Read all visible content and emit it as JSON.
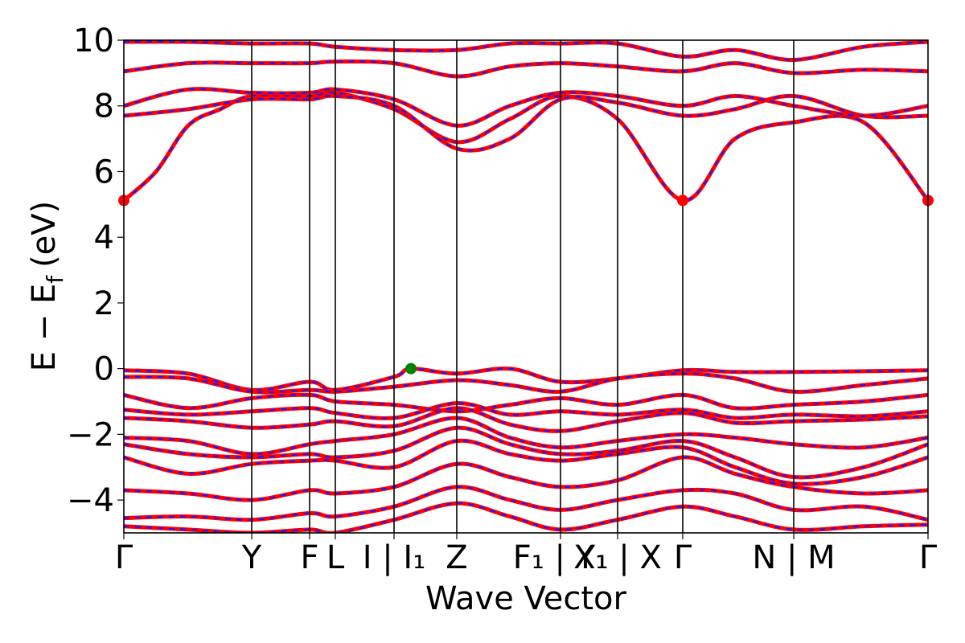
{
  "chart_data": {
    "type": "line",
    "xlabel": "Wave Vector",
    "ylabel": "E − E_f (eV)",
    "ylabel_main": "E − E",
    "ylabel_sub": "f",
    "ylabel_unit": "(eV)",
    "ylim": [
      -5,
      10
    ],
    "xlim": [
      0,
      1
    ],
    "yticks": [
      "−4",
      "−2",
      "0",
      "2",
      "4",
      "6",
      "8",
      "10"
    ],
    "ytick_values": [
      -4,
      -2,
      0,
      2,
      4,
      6,
      8,
      10
    ],
    "grid": false,
    "series_colors": {
      "red": "#ff0000",
      "blue": "#1a1aff"
    },
    "kpoints": [
      {
        "label": "Γ",
        "x": 0.0
      },
      {
        "label": "Y",
        "x": 0.159
      },
      {
        "label": "F",
        "x": 0.231
      },
      {
        "label": "L",
        "x": 0.263
      },
      {
        "label": "I | I₁",
        "x": 0.336
      },
      {
        "label": "Z",
        "x": 0.414
      },
      {
        "label": "F₁ | Y₁",
        "x": 0.543
      },
      {
        "label": "X₁ | X",
        "x": 0.614
      },
      {
        "label": "Γ",
        "x": 0.695
      },
      {
        "label": "N | M",
        "x": 0.833
      },
      {
        "label": "Γ",
        "x": 1.0
      }
    ],
    "markers": [
      {
        "label": "VBM",
        "x": 0.357,
        "y": 0.0,
        "color": "#008000"
      },
      {
        "label": "CBM",
        "x": 0.0,
        "y": 5.12,
        "color": "#ff0000"
      },
      {
        "label": "CBM",
        "x": 0.695,
        "y": 5.12,
        "color": "#ff0000"
      },
      {
        "label": "CBM",
        "x": 1.0,
        "y": 5.12,
        "color": "#ff0000"
      }
    ],
    "series": [
      {
        "values": [
          [
            0,
            -0.05
          ],
          [
            0.08,
            -0.15
          ],
          [
            0.159,
            -0.65
          ],
          [
            0.231,
            -0.4
          ],
          [
            0.263,
            -0.65
          ],
          [
            0.336,
            -0.25
          ],
          [
            0.357,
            0.0
          ],
          [
            0.414,
            -0.15
          ],
          [
            0.48,
            0.0
          ],
          [
            0.543,
            -0.4
          ],
          [
            0.614,
            -0.3
          ],
          [
            0.695,
            -0.05
          ],
          [
            0.76,
            -0.1
          ],
          [
            0.833,
            -0.1
          ],
          [
            0.92,
            -0.08
          ],
          [
            1.0,
            -0.05
          ]
        ]
      },
      {
        "values": [
          [
            0,
            -0.25
          ],
          [
            0.08,
            -0.3
          ],
          [
            0.159,
            -0.7
          ],
          [
            0.231,
            -0.65
          ],
          [
            0.263,
            -0.7
          ],
          [
            0.336,
            -0.55
          ],
          [
            0.414,
            -0.35
          ],
          [
            0.48,
            -0.5
          ],
          [
            0.543,
            -0.7
          ],
          [
            0.614,
            -0.3
          ],
          [
            0.695,
            -0.15
          ],
          [
            0.76,
            -0.3
          ],
          [
            0.833,
            -0.7
          ],
          [
            0.92,
            -0.5
          ],
          [
            1.0,
            -0.3
          ]
        ]
      },
      {
        "values": [
          [
            0,
            -0.8
          ],
          [
            0.08,
            -1.2
          ],
          [
            0.159,
            -0.9
          ],
          [
            0.231,
            -0.8
          ],
          [
            0.263,
            -1.0
          ],
          [
            0.336,
            -1.1
          ],
          [
            0.414,
            -1.3
          ],
          [
            0.48,
            -1.1
          ],
          [
            0.543,
            -0.9
          ],
          [
            0.614,
            -1.1
          ],
          [
            0.695,
            -0.8
          ],
          [
            0.76,
            -1.2
          ],
          [
            0.833,
            -1.1
          ],
          [
            0.92,
            -1.0
          ],
          [
            1.0,
            -0.8
          ]
        ]
      },
      {
        "values": [
          [
            0,
            -1.25
          ],
          [
            0.08,
            -1.4
          ],
          [
            0.159,
            -1.3
          ],
          [
            0.231,
            -1.2
          ],
          [
            0.263,
            -1.35
          ],
          [
            0.336,
            -1.5
          ],
          [
            0.414,
            -1.05
          ],
          [
            0.48,
            -1.4
          ],
          [
            0.543,
            -1.3
          ],
          [
            0.614,
            -1.4
          ],
          [
            0.695,
            -1.25
          ],
          [
            0.76,
            -1.5
          ],
          [
            0.833,
            -1.4
          ],
          [
            0.92,
            -1.45
          ],
          [
            1.0,
            -1.3
          ]
        ]
      },
      {
        "values": [
          [
            0,
            -1.5
          ],
          [
            0.08,
            -1.6
          ],
          [
            0.159,
            -1.8
          ],
          [
            0.231,
            -1.7
          ],
          [
            0.263,
            -1.6
          ],
          [
            0.336,
            -1.75
          ],
          [
            0.414,
            -1.2
          ],
          [
            0.48,
            -1.7
          ],
          [
            0.543,
            -1.9
          ],
          [
            0.614,
            -1.6
          ],
          [
            0.695,
            -1.35
          ],
          [
            0.76,
            -1.65
          ],
          [
            0.833,
            -1.6
          ],
          [
            0.92,
            -1.55
          ],
          [
            1.0,
            -1.45
          ]
        ]
      },
      {
        "values": [
          [
            0,
            -2.1
          ],
          [
            0.08,
            -2.2
          ],
          [
            0.159,
            -2.6
          ],
          [
            0.231,
            -2.3
          ],
          [
            0.263,
            -2.2
          ],
          [
            0.336,
            -2.0
          ],
          [
            0.414,
            -1.5
          ],
          [
            0.48,
            -2.1
          ],
          [
            0.543,
            -2.4
          ],
          [
            0.614,
            -2.2
          ],
          [
            0.695,
            -2.0
          ],
          [
            0.76,
            -2.1
          ],
          [
            0.833,
            -2.3
          ],
          [
            0.92,
            -2.4
          ],
          [
            1.0,
            -2.1
          ]
        ]
      },
      {
        "values": [
          [
            0,
            -2.3
          ],
          [
            0.08,
            -2.6
          ],
          [
            0.159,
            -2.7
          ],
          [
            0.231,
            -2.6
          ],
          [
            0.263,
            -2.7
          ],
          [
            0.336,
            -2.5
          ],
          [
            0.414,
            -1.8
          ],
          [
            0.48,
            -2.3
          ],
          [
            0.543,
            -2.6
          ],
          [
            0.614,
            -2.5
          ],
          [
            0.695,
            -2.2
          ],
          [
            0.76,
            -2.7
          ],
          [
            0.833,
            -3.3
          ],
          [
            0.92,
            -3.0
          ],
          [
            1.0,
            -2.3
          ]
        ]
      },
      {
        "values": [
          [
            0,
            -2.7
          ],
          [
            0.08,
            -3.2
          ],
          [
            0.159,
            -2.9
          ],
          [
            0.231,
            -2.8
          ],
          [
            0.263,
            -2.8
          ],
          [
            0.336,
            -3.0
          ],
          [
            0.414,
            -2.2
          ],
          [
            0.48,
            -2.6
          ],
          [
            0.543,
            -2.8
          ],
          [
            0.614,
            -2.6
          ],
          [
            0.695,
            -2.4
          ],
          [
            0.76,
            -3.0
          ],
          [
            0.833,
            -3.5
          ],
          [
            0.92,
            -3.3
          ],
          [
            1.0,
            -2.7
          ]
        ]
      },
      {
        "values": [
          [
            0,
            -3.7
          ],
          [
            0.08,
            -3.8
          ],
          [
            0.159,
            -4.0
          ],
          [
            0.231,
            -3.7
          ],
          [
            0.263,
            -3.8
          ],
          [
            0.336,
            -3.6
          ],
          [
            0.414,
            -2.9
          ],
          [
            0.48,
            -3.3
          ],
          [
            0.543,
            -3.6
          ],
          [
            0.614,
            -3.4
          ],
          [
            0.695,
            -2.7
          ],
          [
            0.76,
            -3.2
          ],
          [
            0.833,
            -3.6
          ],
          [
            0.92,
            -3.8
          ],
          [
            1.0,
            -3.7
          ]
        ]
      },
      {
        "values": [
          [
            0,
            -4.55
          ],
          [
            0.08,
            -4.5
          ],
          [
            0.159,
            -4.6
          ],
          [
            0.231,
            -4.4
          ],
          [
            0.263,
            -4.5
          ],
          [
            0.336,
            -4.2
          ],
          [
            0.414,
            -3.6
          ],
          [
            0.48,
            -4.0
          ],
          [
            0.543,
            -4.3
          ],
          [
            0.614,
            -4.0
          ],
          [
            0.695,
            -3.7
          ],
          [
            0.76,
            -3.8
          ],
          [
            0.833,
            -4.3
          ],
          [
            0.92,
            -4.2
          ],
          [
            1.0,
            -4.6
          ]
        ]
      },
      {
        "values": [
          [
            0,
            -4.8
          ],
          [
            0.08,
            -4.9
          ],
          [
            0.159,
            -5.0
          ],
          [
            0.231,
            -4.9
          ],
          [
            0.263,
            -5.0
          ],
          [
            0.336,
            -4.6
          ],
          [
            0.414,
            -4.1
          ],
          [
            0.48,
            -4.5
          ],
          [
            0.543,
            -4.9
          ],
          [
            0.614,
            -4.6
          ],
          [
            0.695,
            -4.2
          ],
          [
            0.76,
            -4.5
          ],
          [
            0.833,
            -4.9
          ],
          [
            0.92,
            -4.8
          ],
          [
            1.0,
            -4.75
          ]
        ]
      },
      {
        "values": [
          [
            0,
            5.12
          ],
          [
            0.04,
            6.0
          ],
          [
            0.08,
            7.4
          ],
          [
            0.12,
            7.9
          ],
          [
            0.159,
            8.3
          ],
          [
            0.231,
            8.3
          ],
          [
            0.263,
            8.4
          ],
          [
            0.336,
            7.9
          ],
          [
            0.414,
            6.9
          ],
          [
            0.48,
            7.6
          ],
          [
            0.543,
            8.3
          ],
          [
            0.614,
            7.6
          ],
          [
            0.695,
            5.12
          ],
          [
            0.76,
            7.0
          ],
          [
            0.833,
            7.5
          ],
          [
            0.92,
            7.5
          ],
          [
            1.0,
            5.12
          ]
        ]
      },
      {
        "values": [
          [
            0,
            7.7
          ],
          [
            0.08,
            7.9
          ],
          [
            0.159,
            8.2
          ],
          [
            0.231,
            8.2
          ],
          [
            0.263,
            8.3
          ],
          [
            0.336,
            8.0
          ],
          [
            0.414,
            6.7
          ],
          [
            0.48,
            7.0
          ],
          [
            0.543,
            8.2
          ],
          [
            0.614,
            8.1
          ],
          [
            0.695,
            7.7
          ],
          [
            0.76,
            7.9
          ],
          [
            0.833,
            8.3
          ],
          [
            0.92,
            7.7
          ],
          [
            1.0,
            7.7
          ]
        ]
      },
      {
        "values": [
          [
            0,
            8.0
          ],
          [
            0.08,
            8.5
          ],
          [
            0.159,
            8.4
          ],
          [
            0.231,
            8.4
          ],
          [
            0.263,
            8.5
          ],
          [
            0.336,
            8.2
          ],
          [
            0.414,
            7.4
          ],
          [
            0.48,
            8.0
          ],
          [
            0.543,
            8.4
          ],
          [
            0.614,
            8.3
          ],
          [
            0.695,
            8.0
          ],
          [
            0.76,
            8.3
          ],
          [
            0.833,
            8.0
          ],
          [
            0.92,
            7.7
          ],
          [
            1.0,
            8.0
          ]
        ]
      },
      {
        "values": [
          [
            0,
            9.05
          ],
          [
            0.08,
            9.3
          ],
          [
            0.159,
            9.3
          ],
          [
            0.231,
            9.3
          ],
          [
            0.263,
            9.35
          ],
          [
            0.336,
            9.3
          ],
          [
            0.414,
            8.9
          ],
          [
            0.48,
            9.2
          ],
          [
            0.543,
            9.3
          ],
          [
            0.614,
            9.2
          ],
          [
            0.695,
            9.05
          ],
          [
            0.76,
            9.3
          ],
          [
            0.833,
            9.0
          ],
          [
            0.92,
            9.1
          ],
          [
            1.0,
            9.05
          ]
        ]
      },
      {
        "values": [
          [
            0,
            9.95
          ],
          [
            0.08,
            9.95
          ],
          [
            0.159,
            9.9
          ],
          [
            0.231,
            9.9
          ],
          [
            0.263,
            9.8
          ],
          [
            0.336,
            9.7
          ],
          [
            0.414,
            9.7
          ],
          [
            0.48,
            9.9
          ],
          [
            0.543,
            9.9
          ],
          [
            0.614,
            9.9
          ],
          [
            0.695,
            9.5
          ],
          [
            0.76,
            9.7
          ],
          [
            0.833,
            9.4
          ],
          [
            0.92,
            9.8
          ],
          [
            1.0,
            9.95
          ]
        ]
      }
    ]
  }
}
